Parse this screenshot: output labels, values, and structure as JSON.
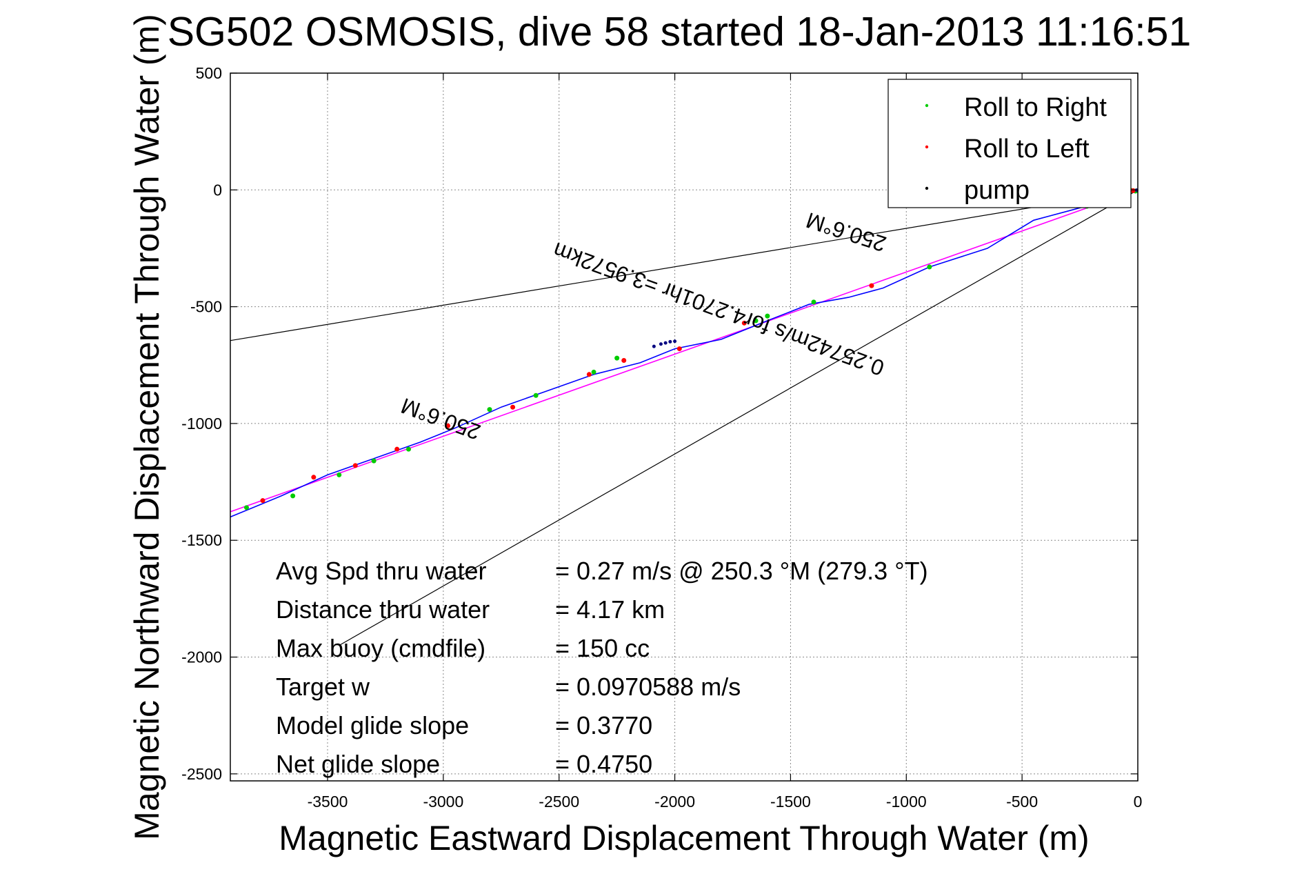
{
  "chart_data": {
    "type": "line",
    "title": "SG502 OSMOSIS, dive 58 started 18-Jan-2013 11:16:51",
    "xlabel": "Magnetic Eastward Displacement Through Water (m)",
    "ylabel": "Magnetic Northward Displacement Through Water (m)",
    "xlim": [
      -3920,
      0
    ],
    "ylim": [
      -2530,
      500
    ],
    "x_ticks": [
      -3500,
      -3000,
      -2500,
      -2000,
      -1500,
      -1000,
      -500,
      0
    ],
    "y_ticks": [
      500,
      0,
      -500,
      -1000,
      -1500,
      -2000,
      -2500
    ],
    "grid": true,
    "legend": {
      "position": "top-right",
      "entries": [
        {
          "label": "Roll to Right",
          "color": "#00cc00"
        },
        {
          "label": "Roll to Left",
          "color": "#ff0000"
        },
        {
          "label": "pump",
          "color": "#000000"
        }
      ]
    },
    "colors": {
      "track": "#0000ff",
      "fit": "#ff00ff",
      "cone": "#000000",
      "roll_right": "#00cc00",
      "roll_left": "#ff0000",
      "pump": "#000080"
    },
    "series": [
      {
        "role": "track",
        "x": [
          0,
          -150,
          -300,
          -450,
          -650,
          -900,
          -1100,
          -1250,
          -1420,
          -1600,
          -1800,
          -2000,
          -2150,
          -2350,
          -2550,
          -2750,
          -2950,
          -3100,
          -3300,
          -3500,
          -3700,
          -3920
        ],
        "y": [
          0,
          -50,
          -90,
          -130,
          -250,
          -330,
          -420,
          -460,
          -490,
          -560,
          -640,
          -680,
          -740,
          -790,
          -860,
          -930,
          -1020,
          -1080,
          -1150,
          -1220,
          -1310,
          -1400
        ]
      },
      {
        "role": "fit",
        "x": [
          0,
          -3920
        ],
        "y": [
          0,
          -1378
        ]
      },
      {
        "role": "cone",
        "x": [
          0,
          -3920
        ],
        "y": [
          0,
          -645
        ]
      },
      {
        "role": "cone",
        "x": [
          0,
          -3450
        ],
        "y": [
          0,
          -1950
        ]
      },
      {
        "name": "Roll to Right",
        "role": "points",
        "x": [
          -10,
          -30,
          -220,
          -900,
          -1400,
          -1600,
          -1650,
          -2250,
          -2350,
          -2600,
          -2800,
          -3150,
          -3300,
          -3450,
          -3650,
          -3850
        ],
        "y": [
          -5,
          -2,
          -70,
          -330,
          -480,
          -540,
          -560,
          -720,
          -780,
          -880,
          -940,
          -1110,
          -1160,
          -1220,
          -1310,
          -1360
        ]
      },
      {
        "name": "Roll to Left",
        "role": "points",
        "x": [
          -20,
          -160,
          -1150,
          -1700,
          -1980,
          -2220,
          -2370,
          -2700,
          -2980,
          -3200,
          -3380,
          -3560,
          -3780
        ],
        "y": [
          -3,
          -60,
          -410,
          -570,
          -680,
          -730,
          -790,
          -930,
          -1010,
          -1110,
          -1180,
          -1230,
          -1330
        ]
      },
      {
        "name": "pump",
        "role": "points",
        "x": [
          -5,
          -2090,
          -2060,
          -2040,
          -2020,
          -2000
        ],
        "y": [
          -1,
          -670,
          -660,
          -655,
          -650,
          -648
        ]
      }
    ],
    "annotations": [
      {
        "text": "250.6°M",
        "x": -1250,
        "y": -150,
        "rotation": 198
      },
      {
        "text": "0.25742m/s for4.2701hr =3.9572km",
        "x": -1800,
        "y": -480,
        "rotation": 200
      },
      {
        "text": "250.6°M",
        "x": -3000,
        "y": -950,
        "rotation": 200
      }
    ],
    "stats": [
      {
        "label": "Avg Spd thru water",
        "value": "=  0.27 m/s @ 250.3 °M (279.3 °T)"
      },
      {
        "label": "Distance thru water",
        "value": "=  4.17 km"
      },
      {
        "label": "Max buoy (cmdfile)",
        "value": "= 150 cc"
      },
      {
        "label": "Target w",
        "value": "= 0.0970588 m/s"
      },
      {
        "label": "Model glide slope",
        "value": "= 0.3770"
      },
      {
        "label": "Net glide slope",
        "value": "= 0.4750"
      }
    ]
  }
}
